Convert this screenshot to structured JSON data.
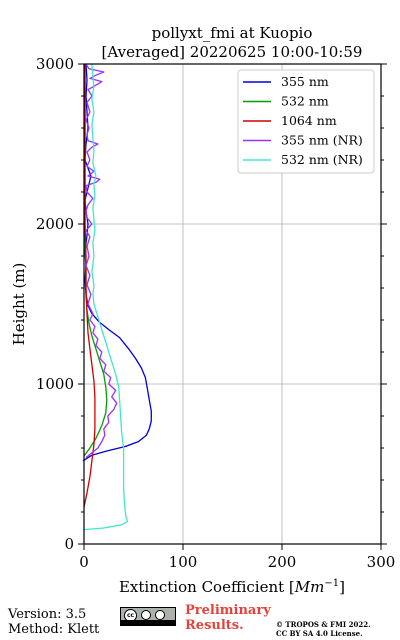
{
  "chart_data": {
    "type": "line",
    "title_line1": "pollyxt_fmi at Kuopio",
    "title_line2": "[Averaged] 20220625 10:00-10:59",
    "xlabel_text": "Extinction Coefficient [",
    "xlabel_unit": "Mm",
    "xlabel_exp": "−1",
    "xlabel_close": "]",
    "ylabel": "Height (m)",
    "xlim": [
      0,
      300
    ],
    "ylim": [
      0,
      3000
    ],
    "xticks": [
      0,
      100,
      200,
      300
    ],
    "yticks": [
      0,
      1000,
      2000,
      3000
    ],
    "grid": true,
    "legend_position": "top-right",
    "series": [
      {
        "name": "355 nm",
        "color": "#0000dd",
        "points": [
          [
            -1,
            520
          ],
          [
            8,
            555
          ],
          [
            22,
            580
          ],
          [
            42,
            610
          ],
          [
            55,
            640
          ],
          [
            63,
            680
          ],
          [
            66,
            720
          ],
          [
            68,
            770
          ],
          [
            68,
            830
          ],
          [
            66,
            900
          ],
          [
            64,
            970
          ],
          [
            62,
            1040
          ],
          [
            58,
            1100
          ],
          [
            52,
            1160
          ],
          [
            45,
            1220
          ],
          [
            36,
            1290
          ],
          [
            25,
            1340
          ],
          [
            15,
            1390
          ],
          [
            8,
            1440
          ],
          [
            4,
            1490
          ],
          [
            2,
            1560
          ],
          [
            1,
            1650
          ],
          [
            2,
            1740
          ],
          [
            1,
            1830
          ],
          [
            3,
            1930
          ],
          [
            4,
            2000
          ],
          [
            2,
            2080
          ],
          [
            1,
            2150
          ],
          [
            3,
            2200
          ],
          [
            5,
            2250
          ],
          [
            7,
            2300
          ],
          [
            4,
            2350
          ],
          [
            1,
            2400
          ],
          [
            2,
            2500
          ],
          [
            4,
            2600
          ],
          [
            3,
            2700
          ],
          [
            2,
            2800
          ],
          [
            3,
            2900
          ],
          [
            2,
            3000
          ]
        ]
      },
      {
        "name": "532 nm",
        "color": "#00a000",
        "points": [
          [
            0,
            550
          ],
          [
            6,
            600
          ],
          [
            12,
            660
          ],
          [
            18,
            740
          ],
          [
            22,
            820
          ],
          [
            23,
            900
          ],
          [
            22,
            980
          ],
          [
            20,
            1060
          ],
          [
            16,
            1140
          ],
          [
            12,
            1220
          ],
          [
            8,
            1300
          ],
          [
            5,
            1380
          ],
          [
            3,
            1460
          ],
          [
            2,
            1550
          ],
          [
            2,
            1700
          ],
          [
            1,
            1900
          ],
          [
            1,
            2100
          ],
          [
            1,
            2300
          ],
          [
            1,
            2500
          ],
          [
            1,
            2700
          ],
          [
            1,
            2900
          ],
          [
            1,
            3000
          ]
        ]
      },
      {
        "name": "1064 nm",
        "color": "#d00000",
        "points": [
          [
            0,
            230
          ],
          [
            3,
            320
          ],
          [
            6,
            420
          ],
          [
            8,
            520
          ],
          [
            10,
            620
          ],
          [
            11,
            720
          ],
          [
            11,
            820
          ],
          [
            11,
            920
          ],
          [
            10,
            1020
          ],
          [
            8,
            1120
          ],
          [
            6,
            1220
          ],
          [
            4,
            1320
          ],
          [
            3,
            1440
          ],
          [
            2,
            1600
          ],
          [
            2,
            1800
          ],
          [
            1,
            2000
          ],
          [
            1,
            2200
          ],
          [
            1,
            2500
          ],
          [
            1,
            2800
          ],
          [
            1,
            3000
          ]
        ]
      },
      {
        "name": "355 nm (NR)",
        "color": "#9b30ff",
        "points": [
          [
            2,
            540
          ],
          [
            8,
            570
          ],
          [
            14,
            600
          ],
          [
            18,
            640
          ],
          [
            21,
            680
          ],
          [
            20,
            720
          ],
          [
            25,
            760
          ],
          [
            24,
            800
          ],
          [
            30,
            840
          ],
          [
            33,
            880
          ],
          [
            28,
            920
          ],
          [
            32,
            960
          ],
          [
            25,
            1000
          ],
          [
            27,
            1040
          ],
          [
            20,
            1080
          ],
          [
            22,
            1120
          ],
          [
            16,
            1160
          ],
          [
            18,
            1200
          ],
          [
            12,
            1240
          ],
          [
            14,
            1280
          ],
          [
            9,
            1320
          ],
          [
            11,
            1360
          ],
          [
            6,
            1400
          ],
          [
            9,
            1440
          ],
          [
            4,
            1500
          ],
          [
            7,
            1560
          ],
          [
            3,
            1620
          ],
          [
            6,
            1680
          ],
          [
            2,
            1740
          ],
          [
            5,
            1800
          ],
          [
            3,
            1860
          ],
          [
            6,
            1920
          ],
          [
            2,
            1960
          ],
          [
            8,
            2000
          ],
          [
            3,
            2040
          ],
          [
            2,
            2080
          ],
          [
            4,
            2120
          ],
          [
            9,
            2160
          ],
          [
            3,
            2200
          ],
          [
            2,
            2240
          ],
          [
            12,
            2260
          ],
          [
            16,
            2280
          ],
          [
            4,
            2300
          ],
          [
            10,
            2330
          ],
          [
            3,
            2360
          ],
          [
            6,
            2400
          ],
          [
            3,
            2450
          ],
          [
            8,
            2480
          ],
          [
            14,
            2500
          ],
          [
            4,
            2520
          ],
          [
            3,
            2560
          ],
          [
            5,
            2600
          ],
          [
            2,
            2650
          ],
          [
            6,
            2700
          ],
          [
            3,
            2760
          ],
          [
            8,
            2800
          ],
          [
            4,
            2840
          ],
          [
            10,
            2860
          ],
          [
            18,
            2890
          ],
          [
            6,
            2910
          ],
          [
            12,
            2930
          ],
          [
            20,
            2950
          ],
          [
            5,
            2970
          ],
          [
            2,
            3000
          ]
        ]
      },
      {
        "name": "532 nm (NR)",
        "color": "#40e8c8",
        "points": [
          [
            0,
            90
          ],
          [
            20,
            100
          ],
          [
            38,
            120
          ],
          [
            44,
            140
          ],
          [
            42,
            180
          ],
          [
            41,
            250
          ],
          [
            40,
            350
          ],
          [
            40,
            450
          ],
          [
            40,
            520
          ],
          [
            40,
            600
          ],
          [
            38,
            700
          ],
          [
            37,
            800
          ],
          [
            36,
            900
          ],
          [
            35,
            980
          ],
          [
            32,
            1060
          ],
          [
            28,
            1140
          ],
          [
            24,
            1220
          ],
          [
            20,
            1300
          ],
          [
            16,
            1380
          ],
          [
            13,
            1440
          ],
          [
            10,
            1500
          ],
          [
            9,
            1560
          ],
          [
            10,
            1620
          ],
          [
            8,
            1700
          ],
          [
            10,
            1800
          ],
          [
            9,
            1880
          ],
          [
            11,
            1960
          ],
          [
            10,
            2030
          ],
          [
            9,
            2100
          ],
          [
            11,
            2180
          ],
          [
            10,
            2250
          ],
          [
            12,
            2300
          ],
          [
            9,
            2380
          ],
          [
            10,
            2460
          ],
          [
            9,
            2540
          ],
          [
            8,
            2620
          ],
          [
            10,
            2700
          ],
          [
            8,
            2780
          ],
          [
            10,
            2860
          ],
          [
            9,
            2920
          ],
          [
            8,
            3000
          ]
        ]
      }
    ]
  },
  "footer": {
    "version": "Version: 3.5",
    "method": "Method: Klett",
    "cc_badge": "cc",
    "preliminary": "Preliminary",
    "results": "Results.",
    "copyright1": "© TROPOS & FMI 2022.",
    "copyright2": "CC BY SA 4.0 License."
  }
}
